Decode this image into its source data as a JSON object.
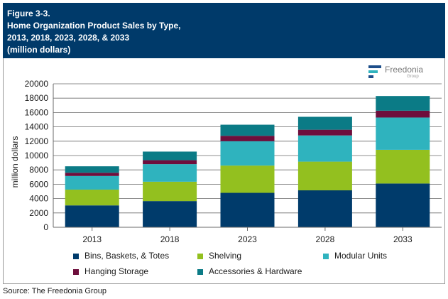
{
  "header": {
    "lines": [
      "Figure 3-3.",
      "Home Organization Product Sales by Type,",
      "2013, 2018, 2023, 2028, & 2033",
      "(million dollars)"
    ]
  },
  "logo": {
    "name": "Freedonia",
    "sub": "Group"
  },
  "source": "Source: The Freedonia Group",
  "chart_data": {
    "type": "bar",
    "stacked": true,
    "title": "Home Organization Product Sales by Type, 2013, 2018, 2023, 2028, & 2033 (million dollars)",
    "xlabel": "",
    "ylabel": "million dollars",
    "ylim": [
      0,
      20000
    ],
    "yticks": [
      0,
      2000,
      4000,
      6000,
      8000,
      10000,
      12000,
      14000,
      16000,
      18000,
      20000
    ],
    "ytick_labels": [
      "0",
      "2000",
      "4000",
      "6000",
      "8000",
      "10000",
      "12000",
      "14000",
      "16000",
      "18000",
      "20000"
    ],
    "grid": true,
    "legend_position": "bottom",
    "categories": [
      "2013",
      "2018",
      "2023",
      "2028",
      "2033"
    ],
    "series": [
      {
        "name": "Bins, Baskets, & Totes",
        "color": "#003b6b",
        "values": [
          3050,
          3650,
          4800,
          5150,
          6100
        ]
      },
      {
        "name": "Shelving",
        "color": "#93c01f",
        "values": [
          2200,
          2700,
          3800,
          4000,
          4700
        ]
      },
      {
        "name": "Modular Units",
        "color": "#2fb3be",
        "values": [
          1900,
          2450,
          3400,
          3650,
          4500
        ]
      },
      {
        "name": "Hanging Storage",
        "color": "#6e0e3c",
        "values": [
          450,
          550,
          750,
          800,
          950
        ]
      },
      {
        "name": "Accessories & Hardware",
        "color": "#0b7b86",
        "values": [
          900,
          1200,
          1550,
          1800,
          2050
        ]
      }
    ]
  }
}
